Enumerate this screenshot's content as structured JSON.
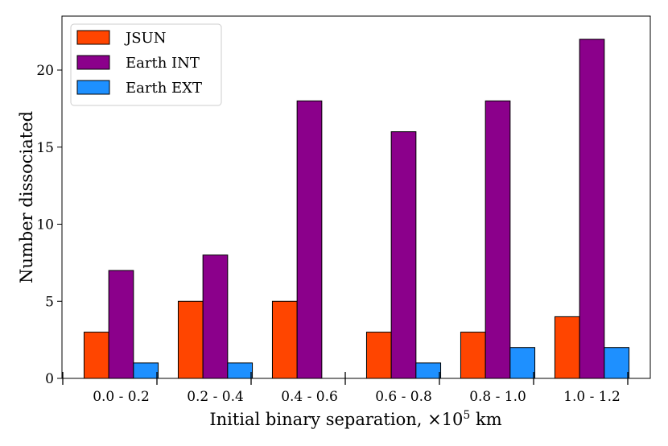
{
  "chart_data": {
    "type": "bar",
    "title": "",
    "xlabel_prefix": "Initial binary separation, ×10",
    "xlabel_exp": "5",
    "xlabel_suffix": " km",
    "ylabel": "Number dissociated",
    "ylim": [
      0,
      23.5
    ],
    "yticks": [
      0,
      5,
      10,
      15,
      20
    ],
    "grid": false,
    "legend_position": "top-left",
    "categories": [
      "0.0 - 0.2",
      "0.2 - 0.4",
      "0.4 - 0.6",
      "0.6 - 0.8",
      "0.8 - 1.0",
      "1.0 - 1.2"
    ],
    "series": [
      {
        "name": "JSUN",
        "color": "#ff4500",
        "values": [
          3,
          5,
          5,
          3,
          3,
          4
        ]
      },
      {
        "name": "Earth INT",
        "color": "#8b008b",
        "values": [
          7,
          8,
          18,
          16,
          18,
          22
        ]
      },
      {
        "name": "Earth EXT",
        "color": "#1e90ff",
        "values": [
          1,
          1,
          0,
          1,
          2,
          2
        ]
      }
    ]
  }
}
